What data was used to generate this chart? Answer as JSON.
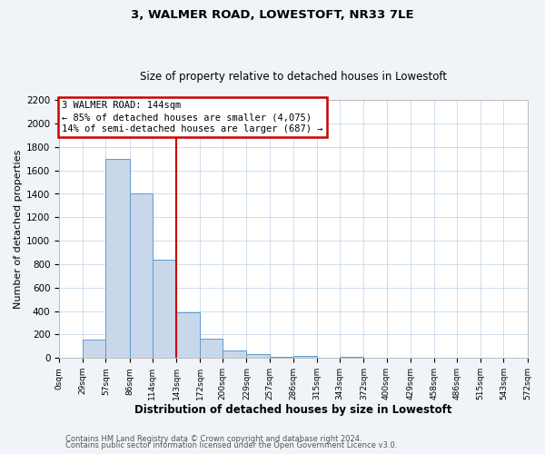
{
  "title": "3, WALMER ROAD, LOWESTOFT, NR33 7LE",
  "subtitle": "Size of property relative to detached houses in Lowestoft",
  "xlabel": "Distribution of detached houses by size in Lowestoft",
  "ylabel": "Number of detached properties",
  "bar_color": "#c8d8ea",
  "bar_edge_color": "#5b9bd5",
  "bin_edges": [
    0,
    29,
    57,
    86,
    114,
    143,
    172,
    200,
    229,
    257,
    286,
    315,
    343,
    372,
    400,
    429,
    458,
    486,
    515,
    543,
    572
  ],
  "bin_labels": [
    "0sqm",
    "29sqm",
    "57sqm",
    "86sqm",
    "114sqm",
    "143sqm",
    "172sqm",
    "200sqm",
    "229sqm",
    "257sqm",
    "286sqm",
    "315sqm",
    "343sqm",
    "372sqm",
    "400sqm",
    "429sqm",
    "458sqm",
    "486sqm",
    "515sqm",
    "543sqm",
    "572sqm"
  ],
  "bar_heights": [
    0,
    155,
    1700,
    1400,
    835,
    390,
    165,
    65,
    30,
    10,
    20,
    5,
    10,
    0,
    0,
    0,
    0,
    0,
    0,
    5
  ],
  "vline_x": 143,
  "vline_color": "#cc0000",
  "ylim": [
    0,
    2200
  ],
  "yticks": [
    0,
    200,
    400,
    600,
    800,
    1000,
    1200,
    1400,
    1600,
    1800,
    2000,
    2200
  ],
  "annotation_title": "3 WALMER ROAD: 144sqm",
  "annotation_line1": "← 85% of detached houses are smaller (4,075)",
  "annotation_line2": "14% of semi-detached houses are larger (687) →",
  "annotation_box_color": "#cc0000",
  "footer1": "Contains HM Land Registry data © Crown copyright and database right 2024.",
  "footer2": "Contains public sector information licensed under the Open Government Licence v3.0.",
  "background_color": "#f0f4f8",
  "plot_bg_color": "#ffffff",
  "grid_color": "#c8d8e8",
  "title_fontsize": 9.5,
  "subtitle_fontsize": 8.5
}
